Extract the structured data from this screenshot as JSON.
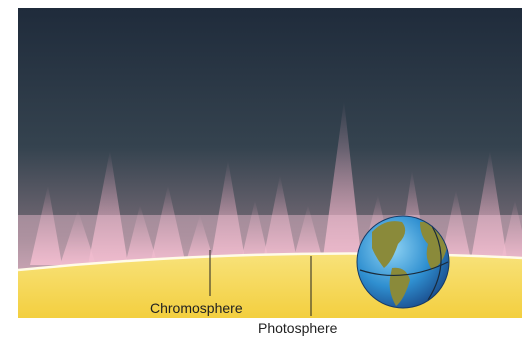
{
  "labels": {
    "chromosphere": "Chromosphere",
    "photosphere": "Photosphere"
  }
}
